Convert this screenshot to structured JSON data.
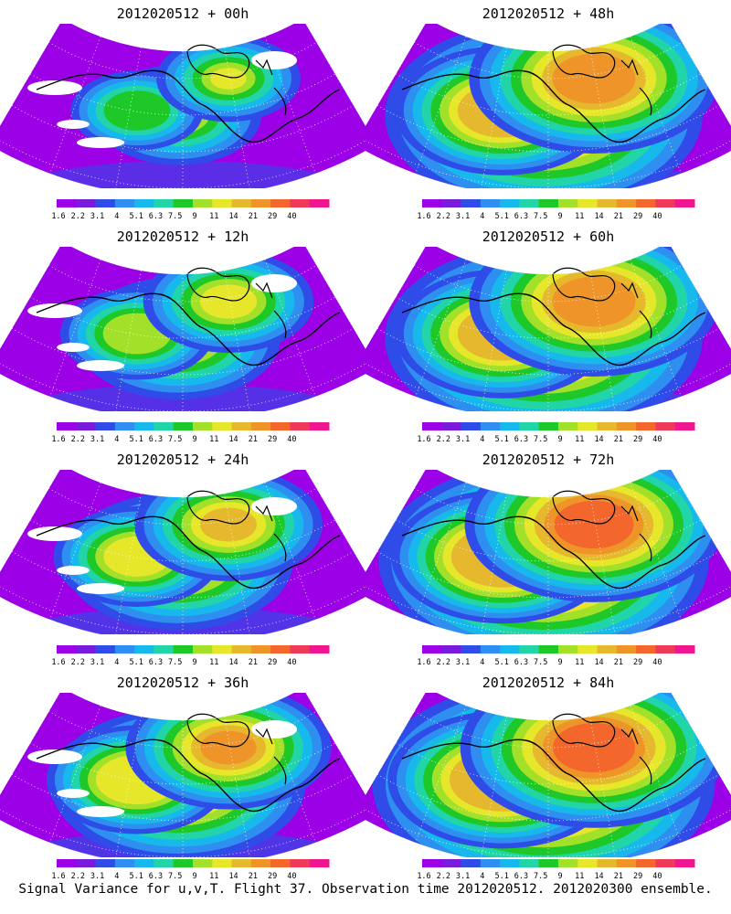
{
  "figure": {
    "footer": "Signal Variance for u,v,T. Flight 37. Observation time 2012020512. 2012020300 ensemble."
  },
  "colorbar": {
    "labels": [
      "1.6",
      "2.2",
      "3.1",
      "4",
      "5.1",
      "6.3",
      "7.5",
      "9",
      "11",
      "14",
      "21",
      "29",
      "40"
    ],
    "colors": [
      "#9b00e6",
      "#7a1bdc",
      "#2f4ce8",
      "#2f8ff0",
      "#17b9ec",
      "#21d5a8",
      "#1ec828",
      "#a2e02a",
      "#e6e62a",
      "#e6b82e",
      "#ee9428",
      "#f3662c",
      "#ee3a58",
      "#f01590"
    ]
  },
  "panels": [
    {
      "title": "2012020512 + 00h",
      "intensity": 0.3
    },
    {
      "title": "2012020512 + 48h",
      "intensity": 0.9
    },
    {
      "title": "2012020512 + 12h",
      "intensity": 0.45
    },
    {
      "title": "2012020512 + 60h",
      "intensity": 0.9
    },
    {
      "title": "2012020512 + 24h",
      "intensity": 0.55
    },
    {
      "title": "2012020512 + 72h",
      "intensity": 0.95
    },
    {
      "title": "2012020512 + 36h",
      "intensity": 0.65
    },
    {
      "title": "2012020512 + 84h",
      "intensity": 1.0
    }
  ]
}
